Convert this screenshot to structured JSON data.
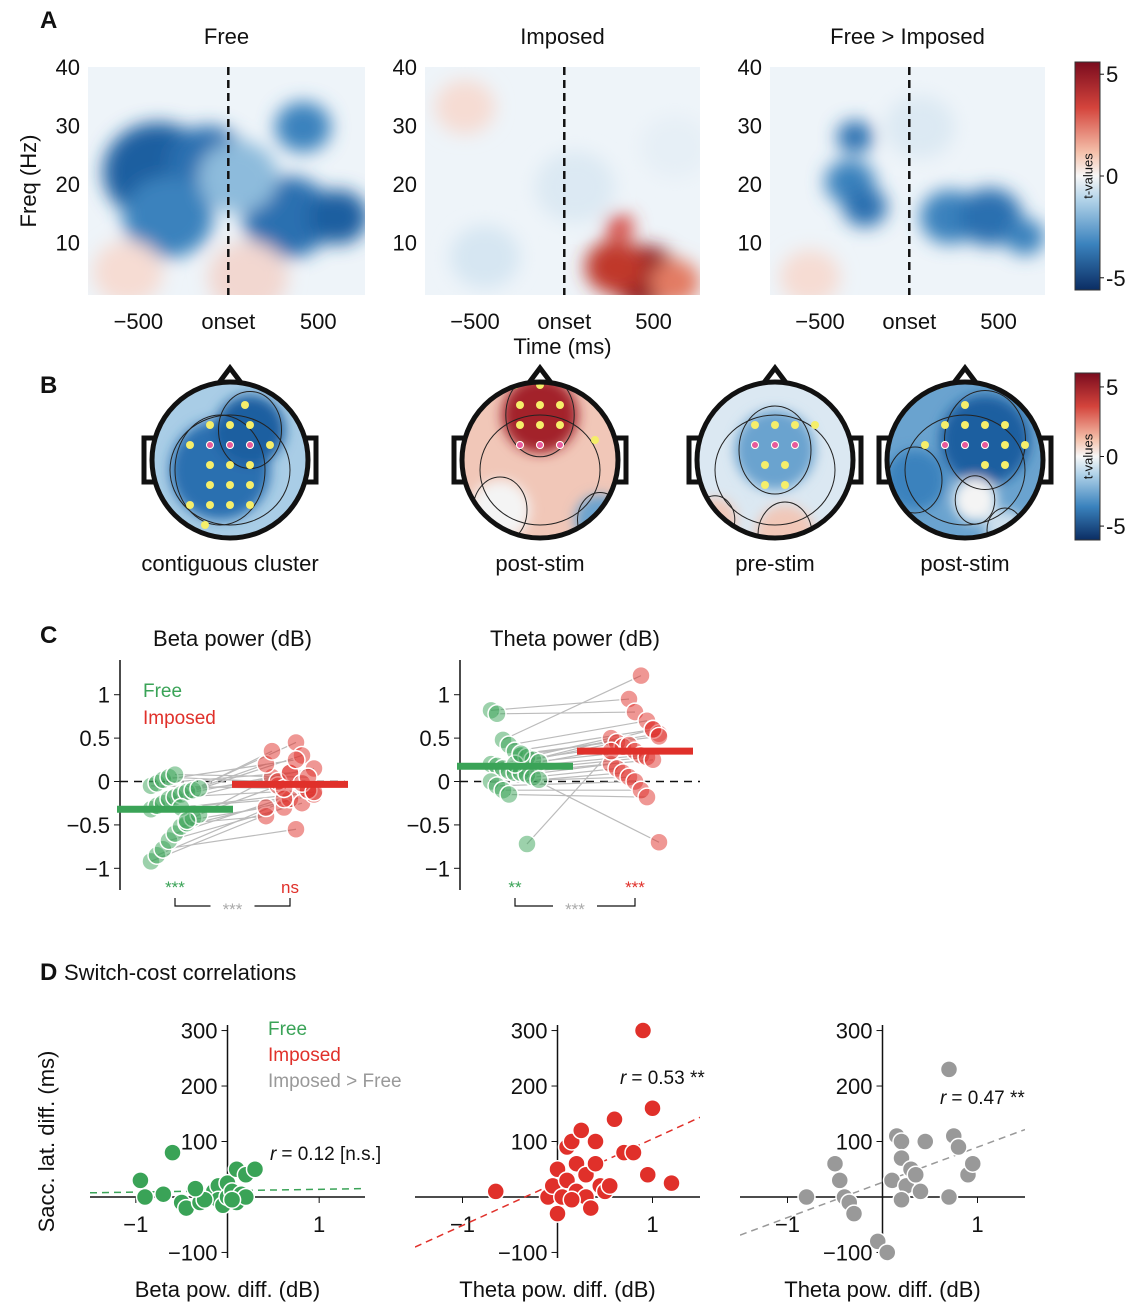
{
  "panel_labels": [
    "A",
    "B",
    "C",
    "D"
  ],
  "panel_d_title": "Switch-cost correlations",
  "chart_data": [
    {
      "type": "heatmap",
      "title": "Free",
      "ylabel": "Freq (Hz)",
      "xlim": [
        -780,
        760
      ],
      "ylim": [
        1,
        40
      ],
      "xticks": [
        {
          "value": -500,
          "label": "−500"
        },
        {
          "value": 0,
          "label": "onset"
        },
        500
      ],
      "yticks": [
        10,
        20,
        30,
        40
      ]
    },
    {
      "type": "heatmap",
      "title": "Imposed",
      "xlabel": "Time (ms)",
      "xlim": [
        -780,
        760
      ],
      "ylim": [
        1,
        40
      ],
      "xticks": [
        {
          "value": -500,
          "label": "−500"
        },
        {
          "value": 0,
          "label": "onset"
        },
        500
      ],
      "yticks": [
        10,
        20,
        30,
        40
      ]
    },
    {
      "type": "heatmap",
      "title": "Free > Imposed",
      "xlim": [
        -780,
        760
      ],
      "ylim": [
        1,
        40
      ],
      "xticks": [
        {
          "value": -500,
          "label": "−500"
        },
        {
          "value": 0,
          "label": "onset"
        },
        500
      ],
      "yticks": [
        10,
        20,
        30,
        40
      ]
    },
    {
      "type": "colorbar",
      "label": "t-values",
      "clim": [
        -5.6,
        5.6
      ],
      "ticks": [
        5,
        0,
        -5
      ]
    },
    {
      "type": "topoplot",
      "caption": "contiguous cluster"
    },
    {
      "type": "topoplot",
      "caption": "post-stim"
    },
    {
      "type": "topoplot",
      "caption": "pre-stim"
    },
    {
      "type": "topoplot",
      "caption": "post-stim"
    },
    {
      "type": "colorbar",
      "label": "t-values",
      "clim": [
        -6,
        6
      ],
      "ticks": [
        5,
        0,
        -5
      ]
    },
    {
      "type": "strip",
      "title": "Beta power (dB)",
      "legend": true,
      "ylim": [
        -1.25,
        1.4
      ],
      "yticks": [
        {
          "value": -1,
          "label": "−1"
        },
        {
          "value": -0.5,
          "label": "−0.5"
        },
        0,
        0.5,
        1
      ],
      "series": [
        {
          "name": "Free",
          "color": "#3aa357",
          "values": [
            -0.92,
            -0.85,
            -0.78,
            -0.68,
            -0.6,
            -0.52,
            -0.48,
            -0.42,
            -0.38,
            -0.32,
            -0.28,
            -0.25,
            -0.2,
            -0.18,
            -0.15,
            -0.12,
            -0.1,
            -0.08,
            -0.05,
            -0.02,
            0.02,
            0.05,
            0.08,
            -0.3,
            -0.45
          ]
        },
        {
          "name": "Imposed",
          "color": "#e0302a",
          "values": [
            -0.3,
            -0.2,
            -0.55,
            -0.25,
            -0.1,
            -0.15,
            -0.4,
            0.05,
            -0.05,
            -0.2,
            0.1,
            0.45,
            0.3,
            -0.1,
            0.15,
            0.2,
            0.35,
            0.0,
            -0.08,
            0.1,
            0.25,
            -0.02,
            0.05,
            -0.12,
            -0.3
          ]
        }
      ],
      "significance": [
        "***",
        "ns"
      ],
      "comparison": "***"
    },
    {
      "type": "strip",
      "title": "Theta power (dB)",
      "legend": false,
      "ylim": [
        -1.25,
        1.4
      ],
      "yticks": [
        {
          "value": -1,
          "label": "−1"
        },
        {
          "value": -0.5,
          "label": "−0.5"
        },
        0,
        0.5,
        1
      ],
      "series": [
        {
          "color": "#3aa357",
          "values": [
            0.82,
            0.78,
            0.48,
            0.42,
            0.35,
            0.3,
            0.28,
            0.25,
            0.22,
            0.2,
            0.18,
            0.15,
            0.12,
            0.1,
            0.1,
            0.08,
            0.05,
            0.02,
            0,
            -0.05,
            -0.1,
            -0.15,
            0.2,
            0.32,
            -0.72
          ]
        },
        {
          "color": "#e0302a",
          "values": [
            0.95,
            0.8,
            1.22,
            0.7,
            0.6,
            0.55,
            0.5,
            0.45,
            0.4,
            0.42,
            0.35,
            0.3,
            0.28,
            0.25,
            -0.7,
            0.2,
            0.15,
            0.1,
            0.05,
            0,
            -0.1,
            -0.18,
            0.6,
            0.52,
            0.35
          ]
        }
      ],
      "significance": [
        "**",
        "***"
      ],
      "comparison": "***"
    },
    {
      "type": "scatter",
      "xlabel": "Beta pow. diff. (dB)",
      "ylabel": "Sacc. lat. diff. (ms)",
      "legend": true,
      "annotation": [
        "r",
        "= 0.12 [n.s.]"
      ],
      "xlim": [
        -1.5,
        1.5
      ],
      "ylim": [
        -110,
        310
      ],
      "xticks": [
        {
          "value": -1,
          "label": "−1"
        },
        1
      ],
      "yticks": [
        {
          "value": -100,
          "label": "−100"
        },
        100,
        200,
        300
      ],
      "series": [
        {
          "name": "Free",
          "color": "#3aa357",
          "x": [
            -0.95,
            -0.9,
            -0.7,
            -0.6,
            -0.5,
            -0.45,
            -0.3,
            -0.2,
            -0.15,
            -0.1,
            -0.1,
            -0.05,
            0,
            0,
            0.05,
            0.1,
            0.1,
            0.15,
            0.2,
            0.2,
            0.3,
            -0.25,
            0.05,
            -0.35
          ],
          "values": [
            30,
            0,
            5,
            80,
            -10,
            -20,
            -10,
            0,
            10,
            20,
            -5,
            -15,
            0,
            25,
            10,
            50,
            -10,
            5,
            0,
            40,
            50,
            -5,
            -5,
            15
          ]
        }
      ]
    },
    {
      "type": "scatter",
      "xlabel": "Theta pow. diff. (dB)",
      "legend": false,
      "annotation": [
        "r",
        "= 0.53 **"
      ],
      "xlim": [
        -1.5,
        1.5
      ],
      "ylim": [
        -110,
        310
      ],
      "xticks": [
        {
          "value": -1,
          "label": "−1"
        },
        1
      ],
      "yticks": [
        {
          "value": -100,
          "label": "−100"
        },
        100,
        200,
        300
      ],
      "series": [
        {
          "name": "Imposed",
          "color": "#e0302a",
          "x": [
            -0.65,
            -0.1,
            -0.05,
            0,
            0,
            0.05,
            0.1,
            0.1,
            0.15,
            0.2,
            0.2,
            0.25,
            0.3,
            0.3,
            0.35,
            0.4,
            0.4,
            0.45,
            0.5,
            0.55,
            0.6,
            0.7,
            0.8,
            0.9,
            0.95,
            1.0,
            1.2,
            0.15
          ],
          "values": [
            10,
            0,
            20,
            -30,
            50,
            0,
            90,
            30,
            100,
            10,
            60,
            120,
            0,
            40,
            -20,
            60,
            100,
            20,
            10,
            20,
            140,
            80,
            80,
            300,
            40,
            160,
            25,
            -5
          ]
        }
      ]
    },
    {
      "type": "scatter",
      "xlabel": "Theta pow. diff. (dB)",
      "legend": false,
      "annotation": [
        "r",
        "= 0.47 **"
      ],
      "xlim": [
        -1.5,
        1.5
      ],
      "ylim": [
        -110,
        310
      ],
      "xticks": [
        {
          "value": -1,
          "label": "−1"
        },
        1
      ],
      "yticks": [
        {
          "value": -100,
          "label": "−100"
        },
        100,
        200,
        300
      ],
      "series": [
        {
          "name": "Imposed > Free",
          "color": "#999999",
          "x": [
            -0.8,
            -0.5,
            -0.45,
            -0.4,
            -0.35,
            -0.3,
            -0.05,
            0.05,
            0.1,
            0.15,
            0.2,
            0.25,
            0.2,
            0.3,
            0.35,
            0.4,
            0.45,
            0.7,
            0.75,
            0.8,
            0.7,
            0.9,
            0.95,
            0.2
          ],
          "values": [
            0,
            60,
            30,
            0,
            -10,
            -30,
            -80,
            -100,
            30,
            110,
            100,
            20,
            70,
            50,
            40,
            10,
            100,
            230,
            110,
            90,
            0,
            40,
            60,
            -5
          ]
        }
      ]
    }
  ]
}
